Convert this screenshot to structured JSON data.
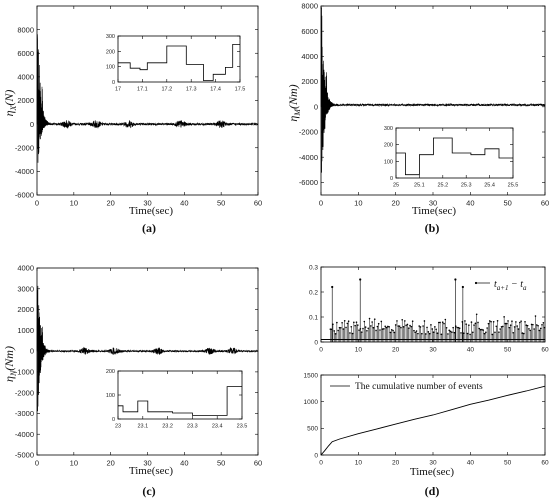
{
  "chart_data": [
    {
      "type": "line",
      "panel": "(a)",
      "xlabel": "Time(sec)",
      "ylabel_symbol": "η",
      "ylabel_sub": "X",
      "ylabel_unit": "(N)",
      "xlim": [
        0,
        60
      ],
      "ylim": [
        -6000,
        10000
      ],
      "xticks": [
        0,
        10,
        20,
        30,
        40,
        50,
        60
      ],
      "yticks": [
        -6000,
        -4000,
        -2000,
        0,
        2000,
        4000,
        6000,
        8000
      ],
      "transient": {
        "peak": 9500,
        "trough": -3900,
        "decay_time": 3.5,
        "amp2": 3400
      },
      "chatter": {
        "base": 0,
        "amp": 90,
        "burst_centers": [
          8,
          16,
          25,
          39,
          50
        ],
        "burst_amp": 260
      },
      "inset": {
        "xlim": [
          17,
          17.5
        ],
        "ylim": [
          0,
          300
        ],
        "xticks": [
          17,
          17.1,
          17.2,
          17.3,
          17.4,
          17.5
        ],
        "yticks": [
          0,
          100,
          200,
          300
        ],
        "x": [
          17,
          17.05,
          17.05,
          17.09,
          17.09,
          17.12,
          17.12,
          17.2,
          17.2,
          17.28,
          17.28,
          17.35,
          17.35,
          17.39,
          17.39,
          17.44,
          17.44,
          17.47,
          17.47,
          17.5
        ],
        "y": [
          125,
          125,
          90,
          90,
          80,
          80,
          125,
          125,
          235,
          235,
          115,
          115,
          10,
          10,
          50,
          50,
          95,
          95,
          245,
          245
        ]
      }
    },
    {
      "type": "line",
      "panel": "(b)",
      "xlabel": "Time(sec)",
      "ylabel_symbol": "η",
      "ylabel_sub": "M",
      "ylabel_unit": "(Nm)",
      "xlim": [
        0,
        60
      ],
      "ylim": [
        -7000,
        8000
      ],
      "xticks": [
        0,
        10,
        20,
        30,
        40,
        50,
        60
      ],
      "yticks": [
        -6000,
        -4000,
        -2000,
        0,
        2000,
        4000,
        6000,
        8000
      ],
      "transient": {
        "peak": 8000,
        "trough": -6500,
        "decay_time": 3.5,
        "amp2": 2600
      },
      "chatter": {
        "base": 150,
        "amp": 80,
        "burst_centers": [],
        "burst_amp": 0
      },
      "inset": {
        "xlim": [
          25,
          25.5
        ],
        "ylim": [
          0,
          300
        ],
        "xticks": [
          25,
          25.1,
          25.2,
          25.3,
          25.4,
          25.5
        ],
        "yticks": [
          0,
          100,
          200,
          300
        ],
        "x": [
          25,
          25.04,
          25.04,
          25.1,
          25.1,
          25.16,
          25.16,
          25.24,
          25.24,
          25.32,
          25.32,
          25.38,
          25.38,
          25.44,
          25.44,
          25.5
        ],
        "y": [
          150,
          150,
          20,
          20,
          140,
          140,
          240,
          240,
          150,
          150,
          140,
          140,
          175,
          175,
          120,
          120
        ]
      }
    },
    {
      "type": "line",
      "panel": "(c)",
      "xlabel": "Time(sec)",
      "ylabel_symbol": "η",
      "ylabel_sub": "N",
      "ylabel_unit": "(Nm)",
      "xlim": [
        0,
        60
      ],
      "ylim": [
        -5000,
        4000
      ],
      "xticks": [
        0,
        10,
        20,
        30,
        40,
        50,
        60
      ],
      "yticks": [
        -5000,
        -4000,
        -3000,
        -2000,
        -1000,
        0,
        1000,
        2000,
        3000,
        4000
      ],
      "transient": {
        "peak": 3700,
        "trough": -3300,
        "decay_time": 3.5,
        "amp2": 1700
      },
      "chatter": {
        "base": 0,
        "amp": 40,
        "burst_centers": [
          13,
          21,
          33,
          47,
          53
        ],
        "burst_amp": 140
      },
      "inset": {
        "xlim": [
          23,
          23.5
        ],
        "ylim": [
          0,
          200
        ],
        "xticks": [
          23,
          23.1,
          23.2,
          23.3,
          23.4,
          23.5
        ],
        "yticks": [
          0,
          100,
          200
        ],
        "x": [
          23,
          23.02,
          23.02,
          23.08,
          23.08,
          23.12,
          23.12,
          23.22,
          23.22,
          23.3,
          23.3,
          23.44,
          23.44,
          23.5
        ],
        "y": [
          55,
          55,
          30,
          30,
          75,
          75,
          30,
          30,
          25,
          25,
          15,
          15,
          135,
          135
        ]
      }
    },
    {
      "type": "bar",
      "panel": "(d) top",
      "legend": "t_{a+1} − t_a",
      "legend_loc": "upper-right",
      "xlim": [
        0,
        60
      ],
      "ylim": [
        0,
        0.3
      ],
      "xticks": [
        0,
        10,
        20,
        30,
        40,
        50,
        60
      ],
      "yticks": [
        0,
        0.1,
        0.2,
        0.3
      ],
      "base_interval": 0.01,
      "spikes": [
        {
          "x": 3,
          "y": 0.22
        },
        {
          "x": 10.5,
          "y": 0.25
        },
        {
          "x": 36,
          "y": 0.25
        },
        {
          "x": 38,
          "y": 0.22
        }
      ]
    },
    {
      "type": "line",
      "panel": "(d) bottom",
      "xlabel": "Time(sec)",
      "legend": "The cumulative number of events",
      "legend_loc": "upper-left",
      "xlim": [
        0,
        60
      ],
      "ylim": [
        0,
        1500
      ],
      "xticks": [
        0,
        10,
        20,
        30,
        40,
        50,
        60
      ],
      "yticks": [
        0,
        500,
        1000,
        1500
      ],
      "x": [
        0,
        1,
        2,
        3,
        5,
        10,
        15,
        20,
        25,
        30,
        35,
        40,
        45,
        50,
        55,
        60
      ],
      "y": [
        0,
        80,
        170,
        250,
        300,
        400,
        490,
        580,
        670,
        750,
        850,
        950,
        1030,
        1120,
        1200,
        1290
      ]
    }
  ],
  "captions": [
    "(a)",
    "(b)",
    "(c)",
    "(d)"
  ]
}
